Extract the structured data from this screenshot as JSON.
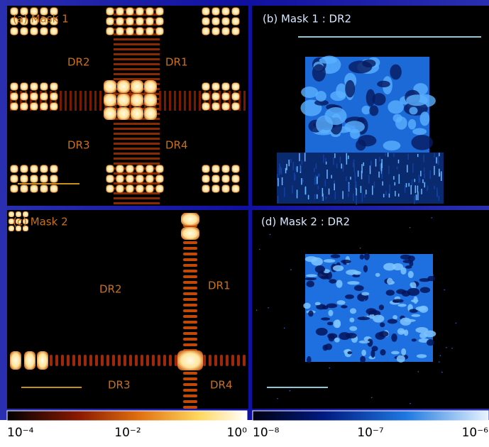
{
  "panels": [
    {
      "label": "(a) Mask 1",
      "regions": [
        "DR2",
        "DR1",
        "DR3",
        "DR4"
      ]
    },
    {
      "label": "(b) Mask 1 : DR2"
    },
    {
      "label": "(c) Mask 2",
      "regions": [
        "DR2",
        "DR1",
        "DR3",
        "DR4"
      ]
    },
    {
      "label": "(d) Mask 2 : DR2"
    }
  ],
  "colorbars": [
    {
      "ticks": [
        "10⁻⁴",
        "10⁻²",
        "10⁰"
      ]
    },
    {
      "ticks": [
        "10⁻⁸",
        "10⁻⁷",
        "10⁻⁶"
      ]
    }
  ]
}
